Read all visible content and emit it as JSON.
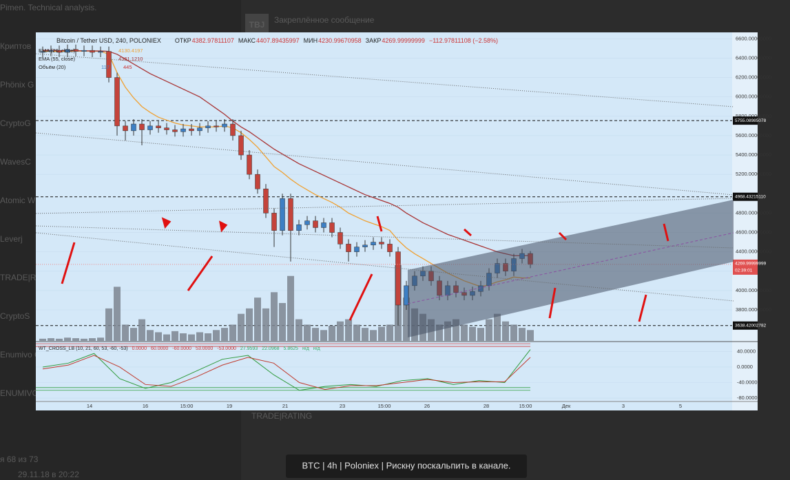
{
  "background": {
    "sidebar": [
      "Pimen. Technical analysis.",
      "Криптов",
      "Phönix G",
      "CryptoG",
      "WavesC",
      "Atomic W",
      "Leverj",
      "TRADE|R",
      "CryptoS",
      "Enumivo Chat",
      "ENUMIVO: Great, thank you."
    ],
    "pinned": "Закреплённое сообщение",
    "badge": "TBJ",
    "rating": "TRADE|RATING",
    "counter": "я 68 из 73",
    "timestamp": "29.11.18 в 20:22"
  },
  "caption": "BTC | 4h | Poloniex | Рискну поскальпить в канале.",
  "chart_data": {
    "type": "candlestick",
    "title": "Bitcoin / Tether USD, 240, POLONIEX",
    "stats": [
      {
        "label": "ОТКР",
        "value": "4382.97811107"
      },
      {
        "label": "МАКС",
        "value": "4407.89435997"
      },
      {
        "label": "МИН",
        "value": "4230.99670958"
      },
      {
        "label": "ЗАКР",
        "value": "4269.99999999"
      }
    ],
    "change": "−112.97811108 (−2.58%)",
    "up_color": "#3d7fc4",
    "down_color": "#c4433b",
    "open": [
      6460,
      6470,
      6480,
      6460,
      6490,
      6470,
      6480,
      6460,
      6470,
      6200,
      5700,
      5650,
      5720,
      5660,
      5700,
      5680,
      5660,
      5640,
      5670,
      5650,
      5680,
      5700,
      5690,
      5720,
      5600,
      5400,
      5200,
      5050,
      4800,
      4620,
      4950,
      4620,
      4680,
      4720,
      4650,
      4700,
      4600,
      4480,
      4400,
      4450,
      4470,
      4500,
      4480,
      4400,
      3850,
      4050,
      4150,
      4200,
      4100,
      3950,
      4050,
      3980,
      3950,
      3990,
      4050,
      4180,
      4280,
      4200,
      4330,
      4382.97811107
    ],
    "high": [
      6520,
      6530,
      6530,
      6540,
      6540,
      6530,
      6530,
      6520,
      6520,
      6250,
      5750,
      5770,
      5770,
      5750,
      5750,
      5730,
      5710,
      5720,
      5720,
      5730,
      5750,
      5760,
      5770,
      5770,
      5650,
      5450,
      5250,
      5100,
      4850,
      5000,
      5000,
      4730,
      4770,
      4770,
      4750,
      4750,
      4650,
      4530,
      4500,
      4520,
      4550,
      4550,
      4530,
      4450,
      4100,
      4200,
      4250,
      4250,
      4150,
      4100,
      4100,
      4030,
      4040,
      4100,
      4230,
      4330,
      4330,
      4380,
      4430,
      4407.89435997
    ],
    "low": [
      6410,
      6420,
      6410,
      6410,
      6420,
      6420,
      6410,
      6410,
      6150,
      5600,
      5550,
      5600,
      5500,
      5610,
      5630,
      5610,
      5590,
      5590,
      5600,
      5600,
      5630,
      5640,
      5640,
      5550,
      5350,
      5150,
      5000,
      4750,
      4450,
      4570,
      4300,
      4570,
      4630,
      4600,
      4600,
      4550,
      4430,
      4300,
      4350,
      4400,
      4420,
      4430,
      4350,
      3640,
      3800,
      4000,
      4100,
      4050,
      3900,
      3900,
      3930,
      3900,
      3900,
      3940,
      4000,
      4130,
      4150,
      4150,
      4280,
      4230.99670958
    ],
    "close": [
      6470,
      6480,
      6460,
      6490,
      6470,
      6480,
      6460,
      6470,
      6200,
      5700,
      5650,
      5720,
      5660,
      5700,
      5680,
      5660,
      5640,
      5670,
      5650,
      5680,
      5700,
      5690,
      5720,
      5600,
      5400,
      5200,
      5050,
      4800,
      4620,
      4950,
      4620,
      4680,
      4720,
      4650,
      4700,
      4600,
      4480,
      4400,
      4450,
      4470,
      4500,
      4480,
      4400,
      3850,
      4050,
      4150,
      4200,
      4100,
      3950,
      4050,
      3980,
      3950,
      3990,
      4050,
      4180,
      4280,
      4200,
      4330,
      4383,
      4269.99999999
    ],
    "ylim": [
      3480,
      6645
    ],
    "yticks": [
      {
        "value": 6600,
        "label": "6600.00000000"
      },
      {
        "value": 6400,
        "label": "6400.00000000"
      },
      {
        "value": 6200,
        "label": "6200.00000000"
      },
      {
        "value": 6000,
        "label": "6000.00000000"
      },
      {
        "value": 5800,
        "label": "5800.00000000"
      },
      {
        "value": 5600,
        "label": "5600.00000000"
      },
      {
        "value": 5400,
        "label": "5400.00000000"
      },
      {
        "value": 5200,
        "label": "5200.00000000"
      },
      {
        "value": 4800,
        "label": "4800.00000000"
      },
      {
        "value": 4600,
        "label": "4600.00000000"
      },
      {
        "value": 4400,
        "label": "4400.00000000"
      },
      {
        "value": 4200,
        "label": "4200"
      },
      {
        "value": 4000,
        "label": "4000.00000000"
      },
      {
        "value": 3800,
        "label": "3800.00000000"
      }
    ],
    "price_lines": [
      {
        "value": 5755.08985078,
        "label": "5755.08985078"
      },
      {
        "value": 4968.4321511,
        "label": "4968.43215110"
      },
      {
        "value": 3638.42002782,
        "label": "3638.42002782"
      }
    ],
    "last_price": {
      "value": 4269.99999999,
      "label": "4269.99999999",
      "countdown": "02:39:01"
    },
    "series": [
      {
        "name": "EMA (20, close)",
        "color": "#f0a030",
        "last_label": "4130.4197",
        "values": [
          6470,
          6472,
          6470,
          6474,
          6473,
          6474,
          6472,
          6472,
          6440,
          6250,
          6100,
          5990,
          5900,
          5840,
          5790,
          5760,
          5730,
          5710,
          5700,
          5690,
          5690,
          5690,
          5700,
          5680,
          5630,
          5560,
          5480,
          5380,
          5280,
          5220,
          5150,
          5090,
          5040,
          4990,
          4950,
          4910,
          4860,
          4800,
          4760,
          4720,
          4690,
          4660,
          4620,
          4520,
          4440,
          4380,
          4330,
          4280,
          4230,
          4180,
          4140,
          4100,
          4070,
          4040,
          4060,
          4090,
          4110,
          4140,
          4130,
          4130
        ]
      },
      {
        "name": "EMA (55, close)",
        "color": "#a83232",
        "last_label": "4361.1210",
        "values": [
          6480,
          6480,
          6478,
          6478,
          6477,
          6476,
          6475,
          6474,
          6470,
          6440,
          6390,
          6340,
          6290,
          6240,
          6200,
          6160,
          6120,
          6080,
          6040,
          6000,
          5940,
          5880,
          5820,
          5750,
          5690,
          5640,
          5580,
          5520,
          5460,
          5410,
          5360,
          5310,
          5270,
          5230,
          5190,
          5150,
          5110,
          5070,
          5030,
          4990,
          4960,
          4930,
          4900,
          4860,
          4800,
          4750,
          4700,
          4660,
          4620,
          4580,
          4550,
          4520,
          4490,
          4460,
          4430,
          4400,
          4380,
          4360,
          4360,
          4361
        ]
      }
    ],
    "volume": {
      "name": "Объём (20)",
      "labels": [
        "117",
        "445"
      ],
      "color": "#7d8590",
      "values": [
        20,
        25,
        20,
        30,
        25,
        20,
        25,
        30,
        300,
        500,
        150,
        120,
        200,
        100,
        80,
        60,
        90,
        70,
        60,
        80,
        70,
        100,
        120,
        150,
        250,
        300,
        400,
        300,
        450,
        350,
        600,
        200,
        150,
        120,
        100,
        140,
        180,
        200,
        150,
        120,
        100,
        130,
        150,
        700,
        400,
        300,
        250,
        200,
        150,
        180,
        200,
        150,
        130,
        120,
        200,
        250,
        180,
        150,
        120,
        100
      ]
    },
    "xtick_labels": [
      "14",
      "16",
      "15:00",
      "19",
      "21",
      "23",
      "15:00",
      "26",
      "28",
      "15:00",
      "Дек",
      "3",
      "5"
    ],
    "indicator": {
      "name": "WT_CROSS_LB (10, 21, 60, 53, -60, -53)",
      "readout": [
        "0.0000",
        "60.0000",
        "-60.0000",
        "53.0000",
        "-53.0000",
        "27.9593",
        "22.0968",
        "5.8625",
        "н/д",
        "н/д"
      ],
      "ylim": [
        -87,
        62
      ],
      "yticks": [
        {
          "value": 40,
          "label": "40.0000"
        },
        {
          "value": 0,
          "label": "0.0000"
        },
        {
          "value": -40,
          "label": "-40.0000"
        },
        {
          "value": -80,
          "label": "-80.0000"
        }
      ],
      "levels": [
        60,
        -60,
        53,
        -53
      ],
      "series": [
        {
          "color": "#2e9a3a",
          "values": [
            0,
            10,
            35,
            -30,
            -55,
            -40,
            -10,
            20,
            30,
            -20,
            -60,
            -50,
            -45,
            -50,
            -35,
            -30,
            -45,
            -35,
            -40,
            45
          ]
        },
        {
          "color": "#c0392b",
          "values": [
            -5,
            5,
            30,
            0,
            -45,
            -50,
            -25,
            5,
            25,
            10,
            -40,
            -58,
            -48,
            -48,
            -40,
            -32,
            -40,
            -38,
            -38,
            25
          ]
        }
      ]
    }
  }
}
